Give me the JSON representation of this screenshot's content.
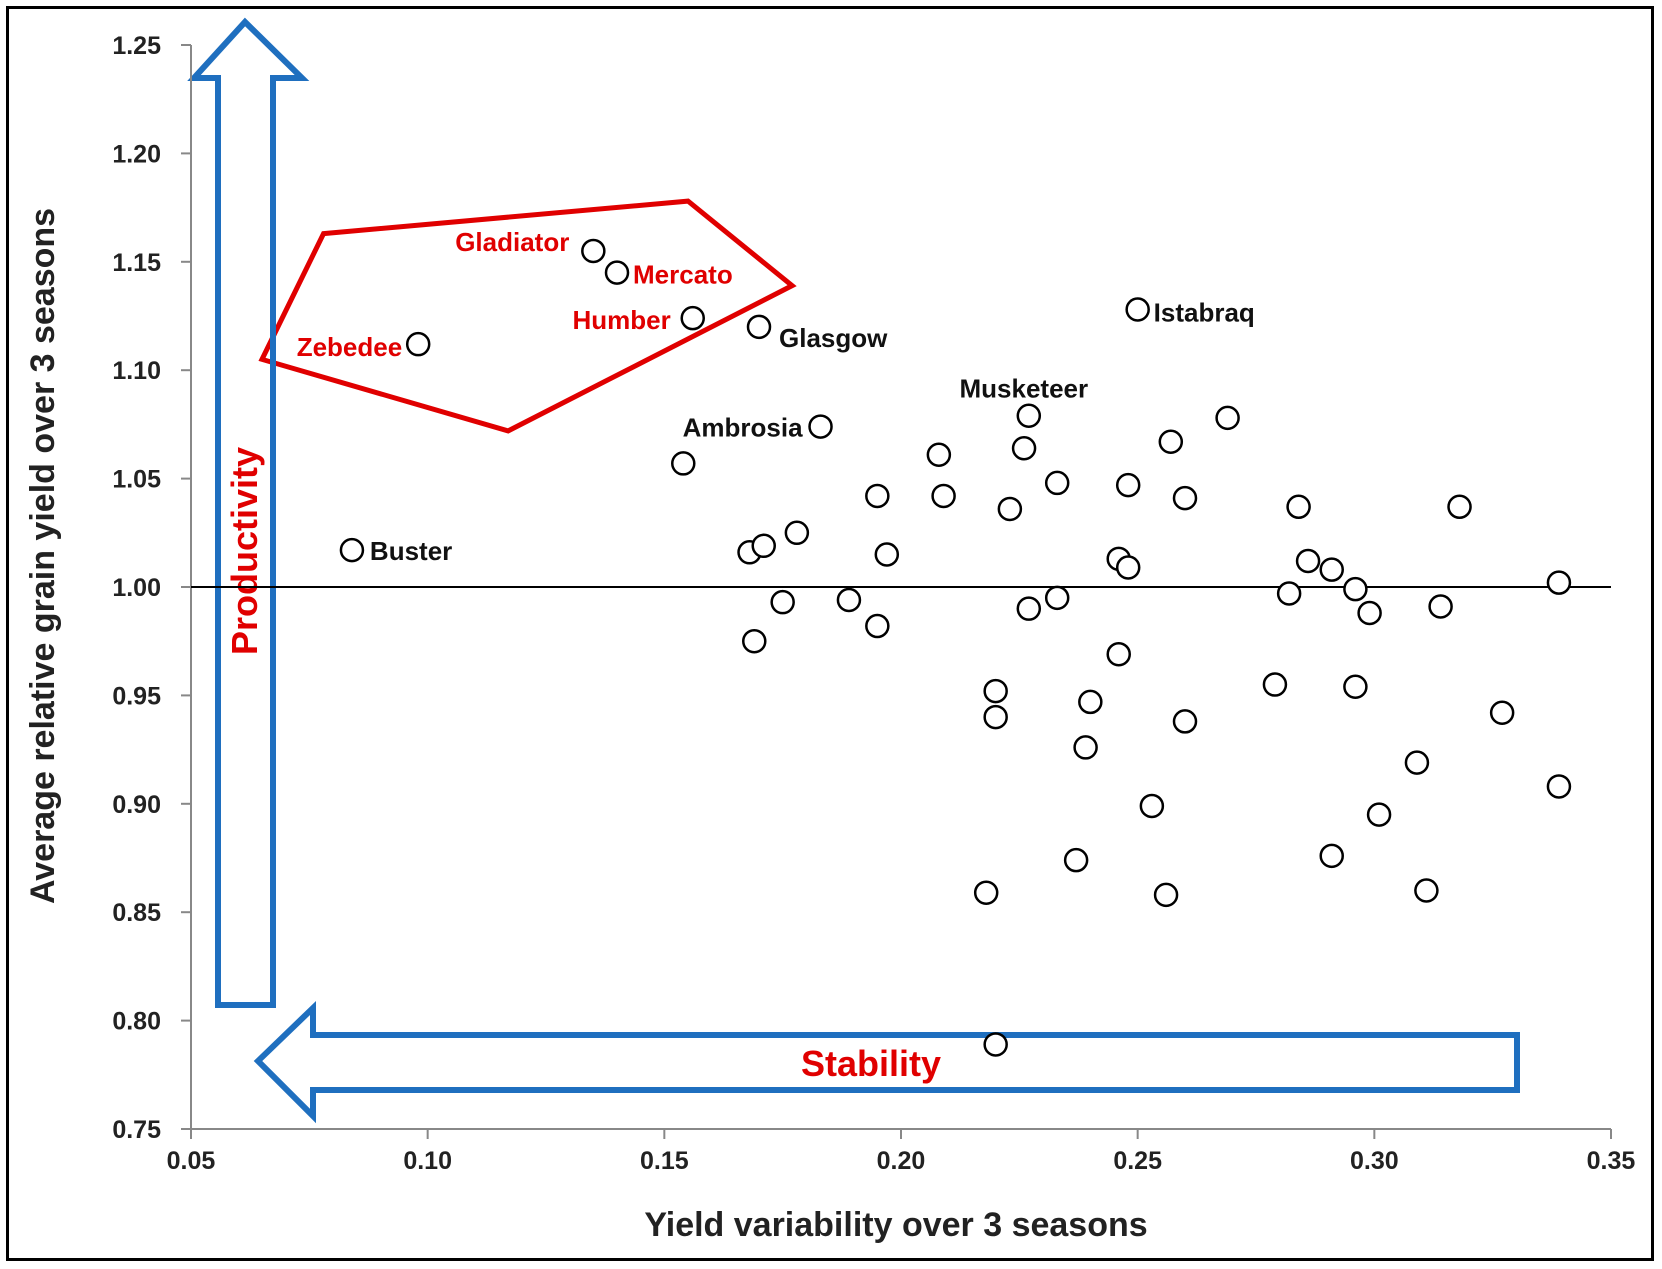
{
  "chart_data": {
    "type": "scatter",
    "xlabel": "Yield variability over 3 seasons",
    "ylabel": "Average relative grain yield over 3 seasons",
    "xlim": [
      0.05,
      0.35
    ],
    "ylim": [
      0.75,
      1.25
    ],
    "x_ticks": [
      "0.05",
      "0.10",
      "0.15",
      "0.20",
      "0.25",
      "0.30",
      "0.35"
    ],
    "y_ticks": [
      "0.75",
      "0.80",
      "0.85",
      "0.90",
      "0.95",
      "1.00",
      "1.05",
      "1.10",
      "1.15",
      "1.20",
      "1.25"
    ],
    "reference_line_y": 1.0,
    "grid": false,
    "marker": "open-circle",
    "points": [
      {
        "x": 0.084,
        "y": 1.017,
        "label": "Buster",
        "label_color": "#111111"
      },
      {
        "x": 0.098,
        "y": 1.112,
        "label": "Zebedee",
        "label_color": "#e00000"
      },
      {
        "x": 0.135,
        "y": 1.155,
        "label": "Gladiator",
        "label_color": "#e00000"
      },
      {
        "x": 0.14,
        "y": 1.145,
        "label": "Mercato",
        "label_color": "#e00000"
      },
      {
        "x": 0.156,
        "y": 1.124,
        "label": "Humber",
        "label_color": "#e00000"
      },
      {
        "x": 0.17,
        "y": 1.12,
        "label": "Glasgow",
        "label_color": "#111111"
      },
      {
        "x": 0.183,
        "y": 1.074,
        "label": "Ambrosia",
        "label_color": "#111111"
      },
      {
        "x": 0.227,
        "y": 1.079,
        "label": "Musketeer",
        "label_color": "#111111"
      },
      {
        "x": 0.25,
        "y": 1.128,
        "label": "Istabraq",
        "label_color": "#111111"
      },
      {
        "x": 0.154,
        "y": 1.057
      },
      {
        "x": 0.168,
        "y": 1.016
      },
      {
        "x": 0.171,
        "y": 1.019
      },
      {
        "x": 0.178,
        "y": 1.025
      },
      {
        "x": 0.169,
        "y": 0.975
      },
      {
        "x": 0.175,
        "y": 0.993
      },
      {
        "x": 0.189,
        "y": 0.994
      },
      {
        "x": 0.195,
        "y": 0.982
      },
      {
        "x": 0.195,
        "y": 1.042
      },
      {
        "x": 0.197,
        "y": 1.015
      },
      {
        "x": 0.208,
        "y": 1.061
      },
      {
        "x": 0.209,
        "y": 1.042
      },
      {
        "x": 0.218,
        "y": 0.859
      },
      {
        "x": 0.22,
        "y": 0.94
      },
      {
        "x": 0.22,
        "y": 0.952
      },
      {
        "x": 0.22,
        "y": 0.789
      },
      {
        "x": 0.223,
        "y": 1.036
      },
      {
        "x": 0.226,
        "y": 1.064
      },
      {
        "x": 0.227,
        "y": 0.99
      },
      {
        "x": 0.233,
        "y": 1.048
      },
      {
        "x": 0.233,
        "y": 0.995
      },
      {
        "x": 0.237,
        "y": 0.874
      },
      {
        "x": 0.239,
        "y": 0.926
      },
      {
        "x": 0.24,
        "y": 0.947
      },
      {
        "x": 0.246,
        "y": 0.969
      },
      {
        "x": 0.246,
        "y": 1.013
      },
      {
        "x": 0.248,
        "y": 1.047
      },
      {
        "x": 0.248,
        "y": 1.009
      },
      {
        "x": 0.253,
        "y": 0.899
      },
      {
        "x": 0.256,
        "y": 0.858
      },
      {
        "x": 0.257,
        "y": 1.067
      },
      {
        "x": 0.26,
        "y": 1.041
      },
      {
        "x": 0.26,
        "y": 0.938
      },
      {
        "x": 0.269,
        "y": 1.078
      },
      {
        "x": 0.279,
        "y": 0.955
      },
      {
        "x": 0.282,
        "y": 0.997
      },
      {
        "x": 0.284,
        "y": 1.037
      },
      {
        "x": 0.286,
        "y": 1.012
      },
      {
        "x": 0.291,
        "y": 1.008
      },
      {
        "x": 0.291,
        "y": 0.876
      },
      {
        "x": 0.296,
        "y": 0.999
      },
      {
        "x": 0.296,
        "y": 0.954
      },
      {
        "x": 0.299,
        "y": 0.988
      },
      {
        "x": 0.301,
        "y": 0.895
      },
      {
        "x": 0.309,
        "y": 0.919
      },
      {
        "x": 0.311,
        "y": 0.86
      },
      {
        "x": 0.314,
        "y": 0.991
      },
      {
        "x": 0.318,
        "y": 1.037
      },
      {
        "x": 0.327,
        "y": 0.942
      },
      {
        "x": 0.339,
        "y": 0.908
      },
      {
        "x": 0.339,
        "y": 1.002
      }
    ],
    "annotations": [
      {
        "text": "Productivity",
        "color": "#e00000",
        "arrow": "up",
        "arrow_color": "#1f6fbf"
      },
      {
        "text": "Stability",
        "color": "#e00000",
        "arrow": "left",
        "arrow_color": "#1f6fbf"
      }
    ],
    "highlight_polygon": {
      "color": "#e00000",
      "vertices": [
        [
          0.078,
          1.163
        ],
        [
          0.155,
          1.178
        ],
        [
          0.177,
          1.139
        ],
        [
          0.117,
          1.072
        ],
        [
          0.065,
          1.105
        ]
      ]
    }
  }
}
